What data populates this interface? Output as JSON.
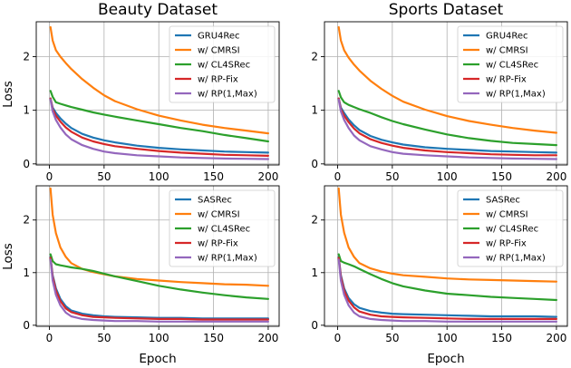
{
  "figure": {
    "titles": [
      "Beauty Dataset",
      "Sports Dataset"
    ],
    "xlabel": "Epoch",
    "ylabel": "Loss"
  },
  "chart_data": [
    {
      "type": "line",
      "title": "Beauty Dataset",
      "xlabel": "",
      "ylabel": "Loss",
      "xlim": [
        -12,
        210
      ],
      "ylim": [
        -0.02,
        2.65
      ],
      "xticks": [
        0,
        50,
        100,
        150,
        200
      ],
      "yticks": [
        0,
        1,
        2
      ],
      "grid": true,
      "legend": "top-right",
      "x": [
        1,
        3,
        6,
        10,
        15,
        20,
        30,
        40,
        50,
        60,
        80,
        100,
        120,
        140,
        160,
        180,
        200
      ],
      "series": [
        {
          "name": "GRU4Rec",
          "color": "#1f77b4",
          "values": [
            1.22,
            1.05,
            0.95,
            0.85,
            0.75,
            0.67,
            0.56,
            0.49,
            0.44,
            0.4,
            0.34,
            0.3,
            0.27,
            0.25,
            0.23,
            0.22,
            0.21
          ]
        },
        {
          "name": "w/ CMRSI",
          "color": "#ff7f0e",
          "values": [
            2.55,
            2.3,
            2.12,
            2.0,
            1.88,
            1.77,
            1.58,
            1.42,
            1.28,
            1.17,
            1.02,
            0.9,
            0.81,
            0.73,
            0.67,
            0.62,
            0.57
          ]
        },
        {
          "name": "w/ CL4SRec",
          "color": "#2ca02c",
          "values": [
            1.36,
            1.25,
            1.15,
            1.12,
            1.09,
            1.06,
            1.01,
            0.96,
            0.92,
            0.88,
            0.81,
            0.74,
            0.67,
            0.61,
            0.54,
            0.48,
            0.42
          ]
        },
        {
          "name": "w/ RP-Fix",
          "color": "#d62728",
          "values": [
            1.22,
            1.02,
            0.9,
            0.79,
            0.68,
            0.6,
            0.49,
            0.42,
            0.37,
            0.33,
            0.28,
            0.24,
            0.21,
            0.19,
            0.17,
            0.16,
            0.15
          ]
        },
        {
          "name": "w/ RP(1,Max)",
          "color": "#9467bd",
          "values": [
            1.2,
            0.98,
            0.82,
            0.68,
            0.55,
            0.46,
            0.35,
            0.28,
            0.23,
            0.2,
            0.16,
            0.14,
            0.12,
            0.11,
            0.1,
            0.095,
            0.09
          ]
        }
      ]
    },
    {
      "type": "line",
      "title": "Sports Dataset",
      "xlabel": "",
      "ylabel": "",
      "xlim": [
        -12,
        210
      ],
      "ylim": [
        -0.02,
        2.65
      ],
      "xticks": [
        0,
        50,
        100,
        150,
        200
      ],
      "yticks": [
        0,
        1,
        2
      ],
      "grid": true,
      "legend": "top-right",
      "x": [
        1,
        3,
        6,
        10,
        15,
        20,
        30,
        40,
        50,
        60,
        80,
        100,
        120,
        140,
        160,
        180,
        200
      ],
      "series": [
        {
          "name": "GRU4Rec",
          "color": "#1f77b4",
          "values": [
            1.22,
            1.05,
            0.95,
            0.83,
            0.72,
            0.63,
            0.52,
            0.45,
            0.4,
            0.36,
            0.31,
            0.28,
            0.26,
            0.24,
            0.23,
            0.22,
            0.21
          ]
        },
        {
          "name": "w/ CMRSI",
          "color": "#ff7f0e",
          "values": [
            2.55,
            2.3,
            2.12,
            1.98,
            1.85,
            1.74,
            1.55,
            1.4,
            1.27,
            1.16,
            1.01,
            0.89,
            0.8,
            0.73,
            0.67,
            0.62,
            0.58
          ]
        },
        {
          "name": "w/ CL4SRec",
          "color": "#2ca02c",
          "values": [
            1.36,
            1.24,
            1.15,
            1.1,
            1.06,
            1.02,
            0.95,
            0.87,
            0.8,
            0.74,
            0.64,
            0.55,
            0.48,
            0.43,
            0.39,
            0.37,
            0.35
          ]
        },
        {
          "name": "w/ RP-Fix",
          "color": "#d62728",
          "values": [
            1.22,
            1.02,
            0.9,
            0.78,
            0.66,
            0.57,
            0.46,
            0.39,
            0.34,
            0.3,
            0.25,
            0.22,
            0.2,
            0.18,
            0.17,
            0.16,
            0.16
          ]
        },
        {
          "name": "w/ RP(1,Max)",
          "color": "#9467bd",
          "values": [
            1.2,
            0.98,
            0.82,
            0.67,
            0.53,
            0.44,
            0.33,
            0.27,
            0.22,
            0.19,
            0.16,
            0.14,
            0.12,
            0.11,
            0.1,
            0.095,
            0.09
          ]
        }
      ]
    },
    {
      "type": "line",
      "title": "",
      "xlabel": "Epoch",
      "ylabel": "Loss",
      "xlim": [
        -12,
        210
      ],
      "ylim": [
        -0.02,
        2.65
      ],
      "xticks": [
        0,
        50,
        100,
        150,
        200
      ],
      "yticks": [
        0,
        1,
        2
      ],
      "grid": true,
      "legend": "top-right",
      "x": [
        1,
        3,
        6,
        10,
        15,
        20,
        30,
        40,
        50,
        60,
        80,
        100,
        120,
        140,
        160,
        180,
        200
      ],
      "series": [
        {
          "name": "SASRec",
          "color": "#1f77b4",
          "values": [
            1.3,
            0.95,
            0.7,
            0.5,
            0.36,
            0.28,
            0.22,
            0.19,
            0.17,
            0.16,
            0.15,
            0.14,
            0.14,
            0.13,
            0.13,
            0.13,
            0.13
          ]
        },
        {
          "name": "w/ CMRSI",
          "color": "#ff7f0e",
          "values": [
            2.6,
            2.1,
            1.75,
            1.48,
            1.3,
            1.18,
            1.07,
            1.01,
            0.97,
            0.93,
            0.88,
            0.85,
            0.82,
            0.8,
            0.78,
            0.77,
            0.75
          ]
        },
        {
          "name": "w/ CL4SRec",
          "color": "#2ca02c",
          "values": [
            1.35,
            1.22,
            1.16,
            1.14,
            1.12,
            1.1,
            1.07,
            1.03,
            0.98,
            0.93,
            0.84,
            0.75,
            0.68,
            0.62,
            0.57,
            0.53,
            0.5
          ]
        },
        {
          "name": "w/ RP-Fix",
          "color": "#d62728",
          "values": [
            1.28,
            0.92,
            0.66,
            0.46,
            0.32,
            0.25,
            0.19,
            0.16,
            0.15,
            0.14,
            0.13,
            0.12,
            0.12,
            0.11,
            0.11,
            0.11,
            0.11
          ]
        },
        {
          "name": "w/ RP(1,Max)",
          "color": "#9467bd",
          "values": [
            1.25,
            0.85,
            0.58,
            0.38,
            0.24,
            0.17,
            0.12,
            0.1,
            0.09,
            0.08,
            0.08,
            0.07,
            0.07,
            0.07,
            0.07,
            0.07,
            0.07
          ]
        }
      ]
    },
    {
      "type": "line",
      "title": "",
      "xlabel": "Epoch",
      "ylabel": "",
      "xlim": [
        -12,
        210
      ],
      "ylim": [
        -0.02,
        2.65
      ],
      "xticks": [
        0,
        50,
        100,
        150,
        200
      ],
      "yticks": [
        0,
        1,
        2
      ],
      "grid": true,
      "legend": "top-right",
      "x": [
        1,
        3,
        6,
        10,
        15,
        20,
        30,
        40,
        50,
        60,
        80,
        100,
        120,
        140,
        160,
        180,
        200
      ],
      "series": [
        {
          "name": "SASRec",
          "color": "#1f77b4",
          "values": [
            1.3,
            0.95,
            0.7,
            0.52,
            0.4,
            0.33,
            0.27,
            0.24,
            0.22,
            0.21,
            0.2,
            0.19,
            0.18,
            0.17,
            0.17,
            0.17,
            0.16
          ]
        },
        {
          "name": "w/ CMRSI",
          "color": "#ff7f0e",
          "values": [
            2.6,
            2.1,
            1.76,
            1.48,
            1.3,
            1.18,
            1.08,
            1.02,
            0.98,
            0.95,
            0.92,
            0.89,
            0.87,
            0.86,
            0.85,
            0.84,
            0.83
          ]
        },
        {
          "name": "w/ CL4SRec",
          "color": "#2ca02c",
          "values": [
            1.35,
            1.22,
            1.19,
            1.16,
            1.12,
            1.07,
            0.97,
            0.88,
            0.8,
            0.74,
            0.66,
            0.6,
            0.57,
            0.54,
            0.52,
            0.5,
            0.48
          ]
        },
        {
          "name": "w/ RP-Fix",
          "color": "#d62728",
          "values": [
            1.28,
            0.92,
            0.66,
            0.47,
            0.34,
            0.26,
            0.2,
            0.17,
            0.16,
            0.15,
            0.14,
            0.13,
            0.12,
            0.12,
            0.12,
            0.12,
            0.12
          ]
        },
        {
          "name": "w/ RP(1,Max)",
          "color": "#9467bd",
          "values": [
            1.25,
            0.85,
            0.58,
            0.38,
            0.24,
            0.17,
            0.12,
            0.1,
            0.09,
            0.08,
            0.08,
            0.07,
            0.07,
            0.07,
            0.07,
            0.07,
            0.07
          ]
        }
      ]
    }
  ]
}
